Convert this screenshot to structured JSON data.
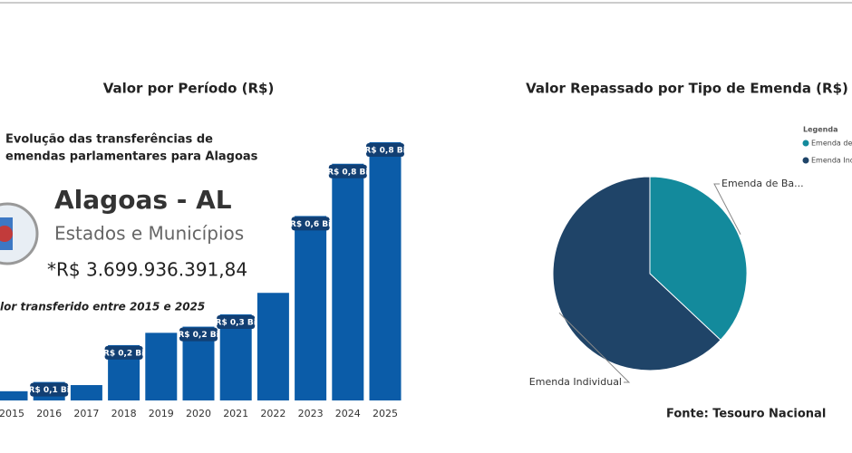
{
  "dashboard": {
    "card_heading": [
      "Evolução das transferências de",
      "emendas parlamentares para Alagoas"
    ],
    "state": "Alagoas - AL",
    "subtitle": "Estados e Municípios",
    "total": "*R$ 3.699.936.391,84",
    "note": "lor transferido entre 2015 e 2025",
    "source": "Fonte: Tesouro Nacional"
  },
  "chart_data": [
    {
      "type": "bar",
      "title": "Valor por Período (R$)",
      "categories": [
        "2015",
        "2016",
        "2017",
        "2018",
        "2019",
        "2020",
        "2021",
        "2022",
        "2023",
        "2024",
        "2025"
      ],
      "values": [
        0.03,
        0.06,
        0.05,
        0.18,
        0.22,
        0.24,
        0.28,
        0.35,
        0.6,
        0.77,
        0.84
      ],
      "value_labels": [
        null,
        "R$ 0,1 Bi",
        null,
        "R$ 0,2 Bi",
        null,
        "R$ 0,2 Bi",
        "R$ 0,3 Bi",
        null,
        "R$ 0,6 Bi",
        "R$ 0,8 Bi",
        "R$ 0,8 Bi"
      ],
      "color": "#0b5ca8",
      "label_color": "#123f73"
    },
    {
      "type": "pie",
      "title": "Valor Repassado por Tipo de Emenda (R$)",
      "legend_title": "Legenda",
      "categories": [
        "Emenda de Ba...",
        "Emenda Individual"
      ],
      "values": [
        37,
        63
      ],
      "colors": [
        "#138a9c",
        "#1f4468"
      ],
      "legend": "top-right"
    }
  ]
}
